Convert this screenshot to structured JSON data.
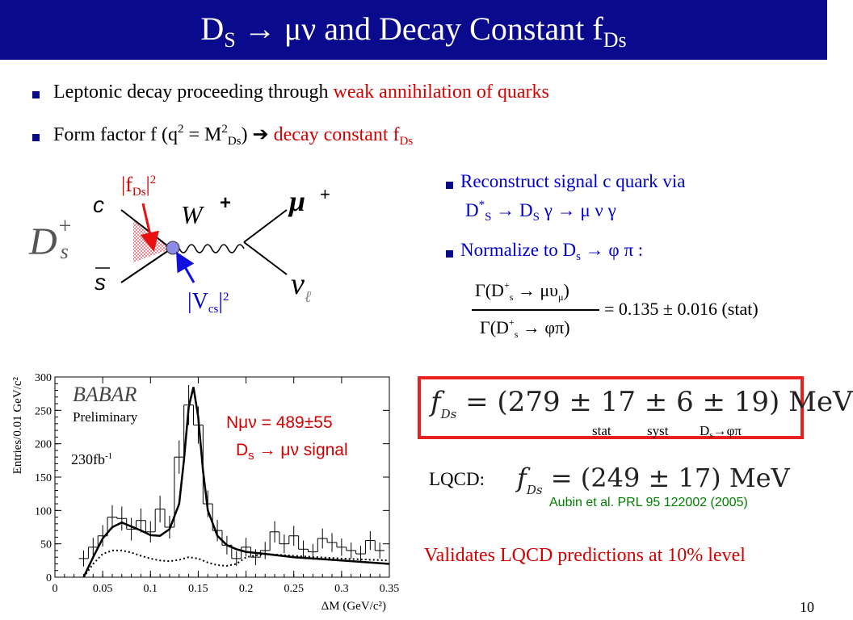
{
  "title": {
    "main": "D",
    "sub1": "S",
    "arrow": "→",
    "mn": "μν",
    "rest": " and Decay Constant f",
    "sub2": "Ds"
  },
  "bullets": {
    "b1_black": "Leptonic decay proceeding through ",
    "b1_red": "weak annihilation of quarks",
    "b2_a": "Form factor f (q",
    "b2_sup": "2",
    "b2_b": " = M",
    "b2_sup2": "2",
    "b2_sub": "Ds",
    "b2_c": ")  ",
    "b2_arrow": "➔",
    "b2_red": "  decay constant  f",
    "b2_red_sub": "Ds"
  },
  "feynman": {
    "fds_label": "|f",
    "fds_sub": "Ds",
    "fds_end": "|",
    "fds_sup": "2",
    "vcs_label": "|V",
    "vcs_sub": "cs",
    "vcs_end": "|",
    "vcs_sup": "2",
    "c_label": "c",
    "s_label": "s",
    "w_label": "W",
    "w_charge": "+",
    "mu_label": "μ",
    "mu_charge": "+",
    "nu_label": "ν",
    "nu_sub": "ℓ",
    "ds_label": "D",
    "ds_sup": "+",
    "ds_sub": "s"
  },
  "right_bullets": {
    "r1_line1": "Reconstruct signal c quark via",
    "r1_line2_a": "D",
    "r1_line2_sup": "*",
    "r1_line2_sub": "S",
    "r1_line2_b": " → D",
    "r1_line2_sub2": "S",
    "r1_line2_c": " γ → μ ν γ",
    "r2_a": "Normalize to D",
    "r2_sub": "s",
    "r2_b": " → φ π :"
  },
  "fraction": {
    "num": "Γ(D",
    "num_sup": "+",
    "num_sub": "s",
    "num_rest": " → μυ",
    "num_sub2": "μ",
    "num_close": ")",
    "den": "Γ(D",
    "den_sup": "+",
    "den_sub": "s",
    "den_rest": " → φπ)",
    "result": "= 0.135 ± 0.016 (stat)"
  },
  "result": {
    "fds": "f",
    "fds_sub": "Ds",
    "value": " = (279 ± 17 ± 6 ± 19) MeV",
    "stat": "stat",
    "syst": "syst",
    "ds_phipi_a": "D",
    "ds_phipi_sub": "s",
    "ds_phipi_b": "→φπ"
  },
  "lqcd": {
    "label": "LQCD:",
    "fds": "f",
    "fds_sub": "Ds",
    "value": " = (249 ± 17) MeV",
    "ref": "Aubin et al. PRL 95 122002 (2005)"
  },
  "validates": "Validates LQCD predictions at 10% level",
  "page_number": "10",
  "plot": {
    "logo": "BABAR",
    "preliminary": "Preliminary",
    "lumi": "230fb",
    "lumi_sup": "-1",
    "nmunu": "Nμν = 489±55",
    "signal_a": "D",
    "signal_sub": "s",
    "signal_b": " → μν  signal"
  },
  "chart_data": {
    "type": "line",
    "xlabel": "ΔM (GeV/c²)",
    "ylabel": "Entries/0.01 GeV/c²",
    "xlim": [
      0,
      0.35
    ],
    "ylim": [
      0,
      300
    ],
    "x_ticks": [
      "0",
      "0.05",
      "0.1",
      "0.15",
      "0.2",
      "0.25",
      "0.3",
      "0.35"
    ],
    "y_ticks": [
      "0",
      "50",
      "100",
      "150",
      "200",
      "250",
      "300"
    ],
    "histogram": {
      "bin_width": 0.01,
      "x": [
        0.03,
        0.04,
        0.05,
        0.06,
        0.07,
        0.08,
        0.09,
        0.1,
        0.11,
        0.12,
        0.13,
        0.14,
        0.15,
        0.16,
        0.17,
        0.18,
        0.19,
        0.2,
        0.21,
        0.22,
        0.23,
        0.24,
        0.25,
        0.26,
        0.27,
        0.28,
        0.29,
        0.3,
        0.31,
        0.32,
        0.33,
        0.34
      ],
      "values": [
        28,
        45,
        62,
        90,
        88,
        72,
        85,
        68,
        102,
        75,
        180,
        258,
        228,
        110,
        70,
        48,
        28,
        45,
        30,
        40,
        68,
        50,
        62,
        42,
        38,
        58,
        52,
        45,
        40,
        35,
        55,
        40
      ],
      "errors": [
        12,
        14,
        16,
        18,
        18,
        17,
        18,
        16,
        20,
        17,
        25,
        30,
        28,
        20,
        16,
        14,
        11,
        14,
        12,
        13,
        16,
        14,
        15,
        13,
        12,
        15,
        14,
        13,
        12,
        12,
        14,
        12
      ]
    },
    "series": [
      {
        "name": "fit",
        "style": "solid",
        "x": [
          0.03,
          0.04,
          0.05,
          0.06,
          0.07,
          0.08,
          0.09,
          0.1,
          0.11,
          0.12,
          0.13,
          0.135,
          0.14,
          0.145,
          0.15,
          0.155,
          0.16,
          0.17,
          0.18,
          0.19,
          0.2,
          0.22,
          0.25,
          0.3,
          0.35
        ],
        "y": [
          0,
          30,
          58,
          75,
          82,
          76,
          70,
          63,
          62,
          72,
          110,
          175,
          255,
          285,
          240,
          160,
          100,
          62,
          48,
          42,
          38,
          35,
          30,
          25,
          20
        ]
      },
      {
        "name": "background",
        "style": "dotted",
        "x": [
          0.03,
          0.04,
          0.05,
          0.06,
          0.07,
          0.08,
          0.09,
          0.1,
          0.11,
          0.12,
          0.13,
          0.14,
          0.15,
          0.16,
          0.17,
          0.18,
          0.19,
          0.2,
          0.22,
          0.25,
          0.3,
          0.35
        ],
        "y": [
          0,
          20,
          35,
          40,
          40,
          37,
          32,
          28,
          25,
          24,
          26,
          30,
          28,
          22,
          18,
          17,
          20,
          30,
          35,
          32,
          28,
          25
        ]
      }
    ]
  }
}
